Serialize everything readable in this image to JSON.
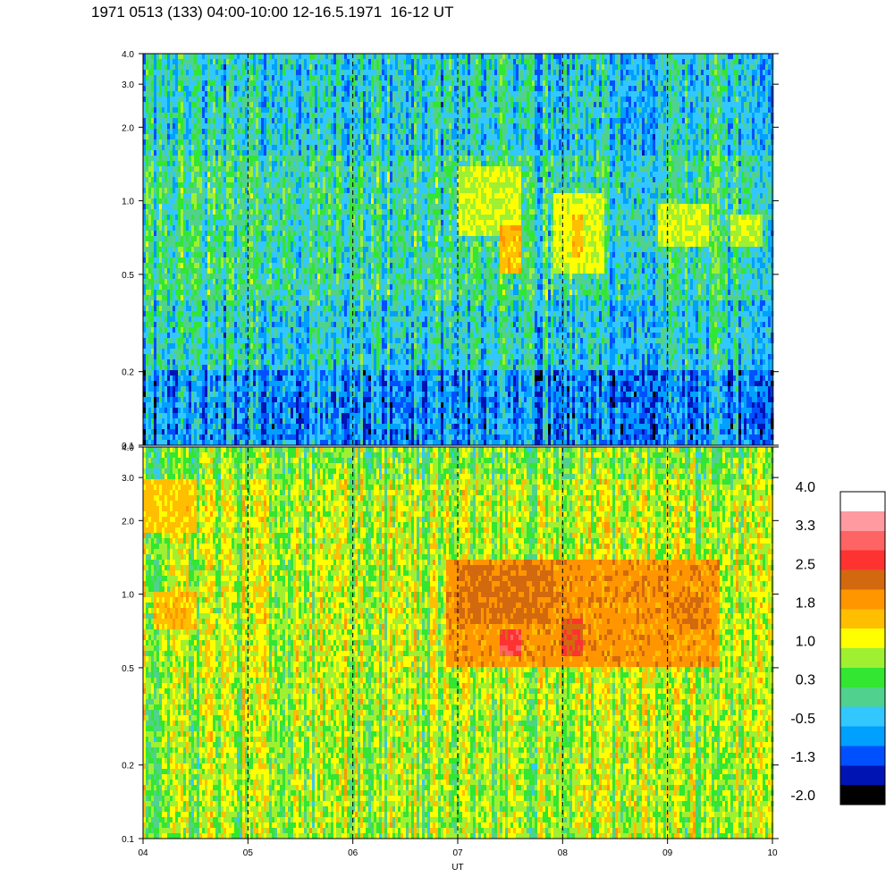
{
  "title": "1971 0513 (133) 04:00-10:00 12-16.5.1971  16-12 UT",
  "chart_data": {
    "type": "heatmap",
    "title": "1971 0513 (133) 04:00-10:00 12-16.5.1971  16-12 UT",
    "xlabel": "UT",
    "ylabel": "",
    "x_range": [
      4,
      10
    ],
    "x_ticks": [
      "04",
      "05",
      "06",
      "07",
      "08",
      "09",
      "10"
    ],
    "x_tick_values": [
      4,
      5,
      6,
      7,
      8,
      9,
      10
    ],
    "y_scale": "log",
    "y_range": [
      0.1,
      4.0
    ],
    "y_ticks": [
      "0.1",
      "0.2",
      "0.5",
      "1.0",
      "2.0",
      "3.0",
      "4.0"
    ],
    "y_tick_values": [
      0.1,
      0.2,
      0.5,
      1.0,
      2.0,
      3.0,
      4.0
    ],
    "vertical_dashed_lines_at": [
      5,
      6,
      7,
      8,
      9
    ],
    "panels": [
      {
        "name": "upper",
        "background_level": -0.3,
        "features": [
          {
            "x_start": 7.0,
            "x_end": 7.6,
            "y_low": 0.7,
            "y_high": 1.4,
            "level": 1.0
          },
          {
            "x_start": 7.4,
            "x_end": 7.6,
            "y_low": 0.5,
            "y_high": 0.8,
            "level": 1.6
          },
          {
            "x_start": 7.9,
            "x_end": 8.4,
            "y_low": 0.5,
            "y_high": 1.1,
            "level": 1.1
          },
          {
            "x_start": 8.1,
            "x_end": 8.2,
            "y_low": 0.6,
            "y_high": 0.9,
            "level": 1.6
          },
          {
            "x_start": 8.9,
            "x_end": 9.4,
            "y_low": 0.65,
            "y_high": 0.95,
            "level": 1.0
          },
          {
            "x_start": 9.6,
            "x_end": 9.9,
            "y_low": 0.65,
            "y_high": 0.9,
            "level": 0.9
          }
        ]
      },
      {
        "name": "lower",
        "background_level": 0.9,
        "features": [
          {
            "x_start": 6.9,
            "x_end": 9.5,
            "y_low": 0.5,
            "y_high": 1.4,
            "level": 2.0
          },
          {
            "x_start": 7.0,
            "x_end": 7.9,
            "y_low": 0.75,
            "y_high": 1.3,
            "level": 2.3
          },
          {
            "x_start": 7.4,
            "x_end": 7.6,
            "y_low": 0.55,
            "y_high": 0.7,
            "level": 2.8
          },
          {
            "x_start": 8.0,
            "x_end": 8.2,
            "y_low": 0.55,
            "y_high": 0.8,
            "level": 2.6
          },
          {
            "x_start": 9.0,
            "x_end": 9.4,
            "y_low": 0.7,
            "y_high": 0.95,
            "level": 2.2
          },
          {
            "x_start": 4.1,
            "x_end": 4.5,
            "y_low": 0.7,
            "y_high": 1.0,
            "level": 1.6
          },
          {
            "x_start": 4.0,
            "x_end": 4.5,
            "y_low": 1.8,
            "y_high": 3.0,
            "level": 1.5
          }
        ]
      }
    ],
    "colorbar": {
      "labels": [
        "4.0",
        "3.3",
        "2.5",
        "1.8",
        "1.0",
        "0.3",
        "-0.5",
        "-1.3",
        "-2.0"
      ],
      "colors": [
        "#ffffff",
        "#ff9aa0",
        "#ff6464",
        "#ff3232",
        "#d2690f",
        "#ff9600",
        "#ffbe00",
        "#ffff00",
        "#a0f032",
        "#32e632",
        "#50d28c",
        "#32c8ff",
        "#00a0ff",
        "#0050ff",
        "#0014b4",
        "#000000"
      ]
    }
  }
}
